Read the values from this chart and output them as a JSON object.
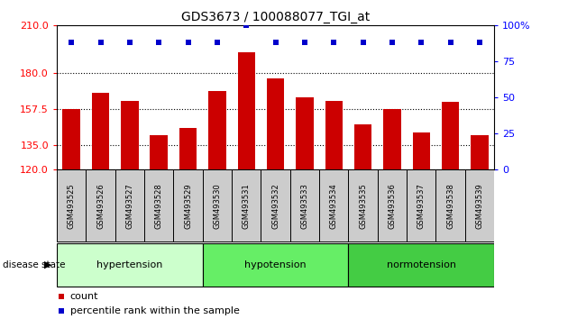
{
  "title": "GDS3673 / 100088077_TGI_at",
  "samples": [
    "GSM493525",
    "GSM493526",
    "GSM493527",
    "GSM493528",
    "GSM493529",
    "GSM493530",
    "GSM493531",
    "GSM493532",
    "GSM493533",
    "GSM493534",
    "GSM493535",
    "GSM493536",
    "GSM493537",
    "GSM493538",
    "GSM493539"
  ],
  "counts": [
    157.5,
    168,
    163,
    141,
    146,
    169,
    193,
    177,
    165,
    163,
    148,
    157.5,
    143,
    162,
    141
  ],
  "percentile_ranks": [
    88,
    88,
    88,
    88,
    88,
    88,
    100,
    88,
    88,
    88,
    88,
    88,
    88,
    88,
    88
  ],
  "groups": [
    {
      "label": "hypertension",
      "start": 0,
      "end": 4,
      "color": "#ccffcc"
    },
    {
      "label": "hypotension",
      "start": 5,
      "end": 9,
      "color": "#66ee66"
    },
    {
      "label": "normotension",
      "start": 10,
      "end": 14,
      "color": "#44cc44"
    }
  ],
  "bar_color": "#cc0000",
  "dot_color": "#0000cc",
  "ylim_left": [
    120,
    210
  ],
  "ylim_right": [
    0,
    100
  ],
  "yticks_left": [
    120,
    135,
    157.5,
    180,
    210
  ],
  "yticks_right": [
    0,
    25,
    50,
    75,
    100
  ],
  "figsize": [
    6.3,
    3.54
  ],
  "dpi": 100
}
